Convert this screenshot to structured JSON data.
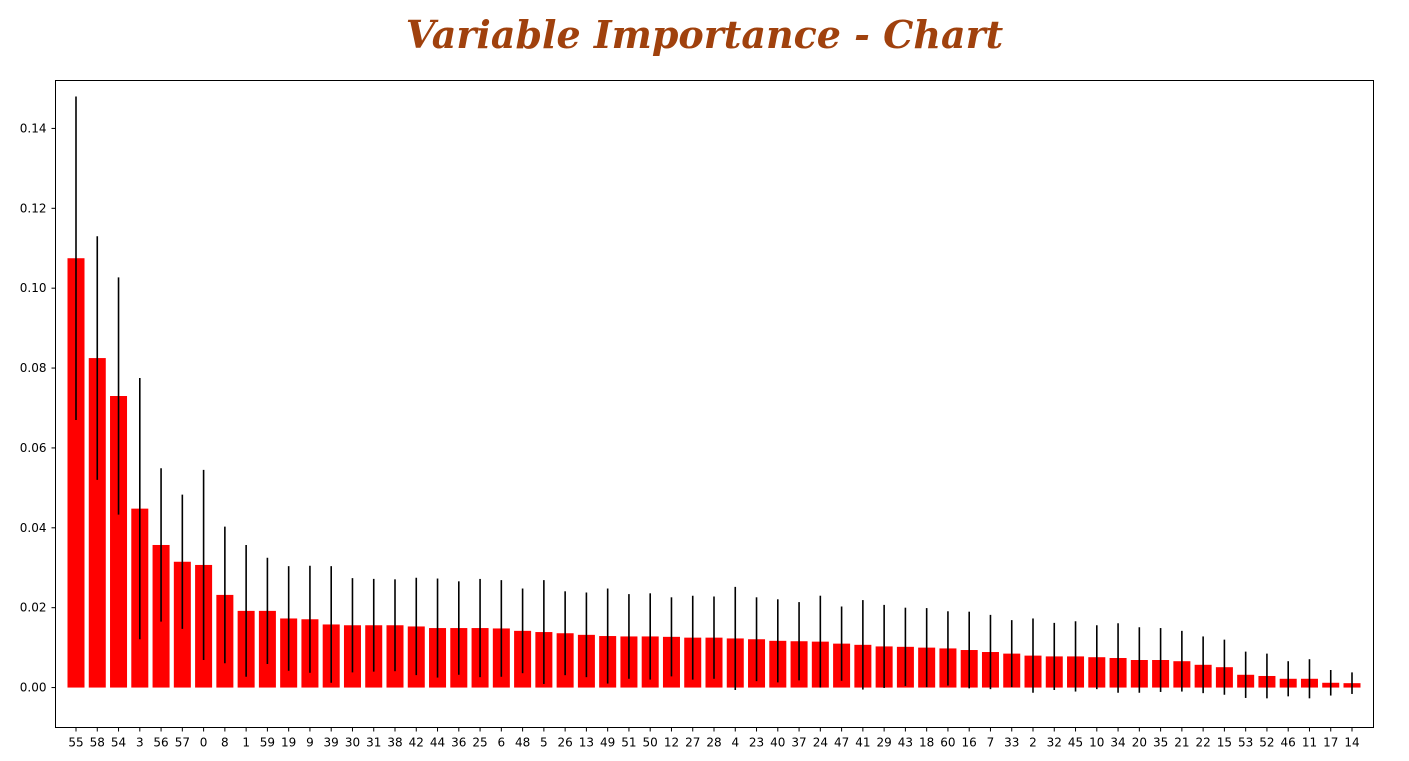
{
  "chart_data": {
    "type": "bar",
    "title": "Variable Importance - Chart",
    "xlabel": "",
    "ylabel": "",
    "ylim": [
      -0.01,
      0.152
    ],
    "yticks": [
      0.0,
      0.02,
      0.04,
      0.06,
      0.08,
      0.1,
      0.12,
      0.14
    ],
    "ytick_labels": [
      "0.00",
      "0.02",
      "0.04",
      "0.06",
      "0.08",
      "0.10",
      "0.12",
      "0.14"
    ],
    "grid": false,
    "legend": "none",
    "bar_color": "#ff0000",
    "error_color": "#000000",
    "categories": [
      "55",
      "58",
      "54",
      "3",
      "56",
      "57",
      "0",
      "8",
      "1",
      "59",
      "19",
      "9",
      "39",
      "30",
      "31",
      "38",
      "42",
      "44",
      "36",
      "25",
      "6",
      "48",
      "5",
      "26",
      "13",
      "49",
      "51",
      "50",
      "12",
      "27",
      "28",
      "4",
      "23",
      "40",
      "37",
      "24",
      "47",
      "41",
      "29",
      "43",
      "18",
      "60",
      "16",
      "7",
      "33",
      "2",
      "32",
      "45",
      "10",
      "34",
      "20",
      "35",
      "21",
      "22",
      "15",
      "53",
      "52",
      "46",
      "11",
      "17",
      "14"
    ],
    "values": [
      0.1075,
      0.0825,
      0.073,
      0.0448,
      0.0357,
      0.0315,
      0.0307,
      0.0232,
      0.0192,
      0.0192,
      0.0173,
      0.0171,
      0.0158,
      0.0156,
      0.0156,
      0.0156,
      0.0153,
      0.0149,
      0.0149,
      0.0149,
      0.0148,
      0.0142,
      0.0139,
      0.0136,
      0.0132,
      0.0129,
      0.0128,
      0.0128,
      0.0127,
      0.0125,
      0.0125,
      0.0123,
      0.0121,
      0.0117,
      0.0116,
      0.0115,
      0.011,
      0.0107,
      0.0103,
      0.0102,
      0.01,
      0.0098,
      0.0094,
      0.0089,
      0.0085,
      0.008,
      0.0078,
      0.0078,
      0.0076,
      0.0074,
      0.0069,
      0.0069,
      0.0066,
      0.0057,
      0.0051,
      0.0032,
      0.0029,
      0.0022,
      0.0022,
      0.0012,
      0.0011
    ],
    "errors": [
      0.0405,
      0.0305,
      0.0297,
      0.0327,
      0.0192,
      0.0168,
      0.0238,
      0.0171,
      0.0165,
      0.0133,
      0.0131,
      0.0134,
      0.0146,
      0.0118,
      0.0116,
      0.0115,
      0.0122,
      0.0124,
      0.0117,
      0.0123,
      0.0121,
      0.0106,
      0.013,
      0.0105,
      0.0106,
      0.0119,
      0.0106,
      0.0108,
      0.0099,
      0.0105,
      0.0103,
      0.0129,
      0.0105,
      0.0104,
      0.0098,
      0.0115,
      0.0093,
      0.0112,
      0.0104,
      0.0098,
      0.0099,
      0.0093,
      0.0096,
      0.0093,
      0.0084,
      0.0093,
      0.0084,
      0.0088,
      0.008,
      0.0087,
      0.0082,
      0.008,
      0.0076,
      0.0071,
      0.0069,
      0.0058,
      0.0056,
      0.0044,
      0.0049,
      0.0032,
      0.0027
    ]
  }
}
